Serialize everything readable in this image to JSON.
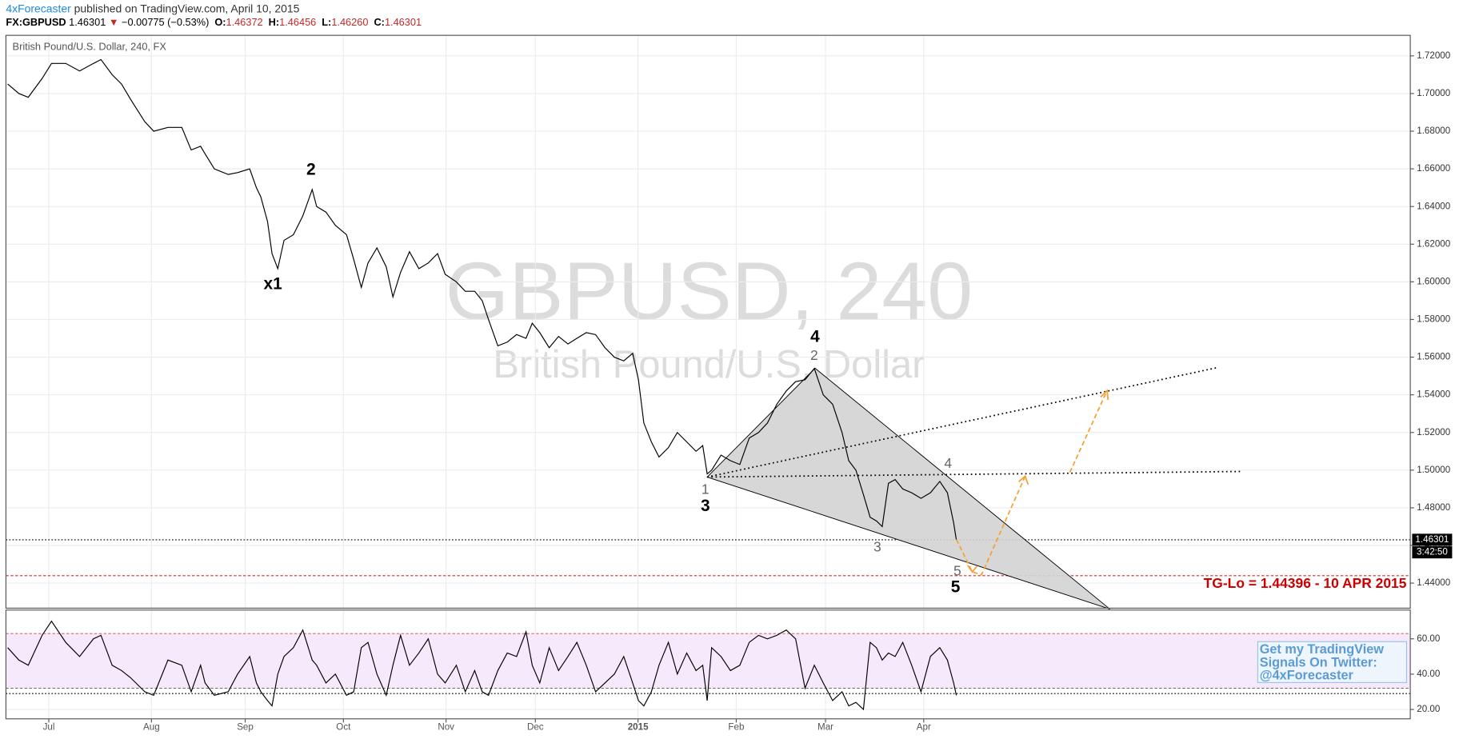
{
  "header": {
    "author": "4xForecaster",
    "published": "published on TradingView.com, April 10, 2015",
    "symbol": "FX:GBPUSD",
    "last": "1.46301",
    "arrow": "▼",
    "change": "−0.00775 (−0.53%)",
    "ohlc": [
      [
        "O:",
        "1.46372"
      ],
      [
        "H:",
        "1.46456"
      ],
      [
        "L:",
        "1.46260"
      ],
      [
        "C:",
        "1.46301"
      ]
    ]
  },
  "chart_data": [
    {
      "type": "line",
      "title": "British Pound/U.S. Dollar, 240, FX",
      "watermark": [
        "GBPUSD, 240",
        "British Pound/U.S. Dollar"
      ],
      "color": "#000000",
      "x": [
        -9.2,
        -6.7,
        -4.6,
        -1.5,
        0.6,
        3.8,
        6.9,
        10.0,
        11.7,
        14.2,
        16.3,
        18.3,
        21.5,
        23.5,
        26.7,
        29.8,
        31.9,
        34.0,
        35.0,
        37.1,
        40.2,
        42.3,
        45.0,
        46.5,
        47.5,
        49.0,
        50.0,
        51.3,
        52.7,
        54.8,
        56.9,
        59.0,
        60.0,
        62.1,
        64.2,
        66.7,
        68.3,
        70.0,
        71.5,
        73.5,
        75.6,
        77.1,
        78.8,
        80.8,
        82.9,
        85.0,
        87.1,
        88.8,
        91.3,
        93.3,
        95.4,
        97.1,
        98.5,
        100.6,
        102.7,
        104.8,
        106.9,
        108.3,
        110.0,
        112.1,
        114.2,
        116.3,
        118.3,
        120.4,
        122.5,
        124.6,
        126.7,
        128.8,
        130.8,
        132.1,
        133.3,
        135.0,
        136.7,
        138.8,
        140.8,
        142.9,
        145.0,
        146.5,
        147.5,
        148.5,
        150.6,
        152.7,
        154.8,
        156.9,
        159.0,
        161.0,
        163.1,
        165.2,
        167.3,
        169.4,
        171.5,
        173.5,
        175.6,
        177.7,
        179.2,
        180.8,
        182.5,
        184.0,
        185.4,
        186.7,
        188.1,
        189.6,
        191.3,
        193.3,
        195.4,
        197.5,
        199.6,
        201.3,
        202.7,
        203.3
      ],
      "values": [
        1.705,
        1.7,
        1.698,
        1.708,
        1.716,
        1.716,
        1.712,
        1.716,
        1.718,
        1.71,
        1.705,
        1.697,
        1.685,
        1.68,
        1.682,
        1.682,
        1.67,
        1.672,
        1.668,
        1.66,
        1.657,
        1.658,
        1.66,
        1.65,
        1.645,
        1.632,
        1.615,
        1.607,
        1.622,
        1.625,
        1.635,
        1.649,
        1.64,
        1.637,
        1.63,
        1.625,
        1.612,
        1.597,
        1.61,
        1.618,
        1.608,
        1.592,
        1.605,
        1.616,
        1.607,
        1.61,
        1.615,
        1.604,
        1.6,
        1.595,
        1.595,
        1.59,
        1.58,
        1.566,
        1.568,
        1.572,
        1.57,
        1.578,
        1.573,
        1.565,
        1.571,
        1.567,
        1.57,
        1.573,
        1.572,
        1.565,
        1.56,
        1.558,
        1.562,
        1.548,
        1.525,
        1.515,
        1.507,
        1.512,
        1.52,
        1.515,
        1.51,
        1.513,
        1.498,
        1.5,
        1.508,
        1.505,
        1.503,
        1.517,
        1.52,
        1.525,
        1.535,
        1.542,
        1.547,
        1.548,
        1.554,
        1.54,
        1.535,
        1.52,
        1.505,
        1.5,
        1.487,
        1.475,
        1.473,
        1.47,
        1.493,
        1.495,
        1.49,
        1.488,
        1.485,
        1.488,
        1.494,
        1.488,
        1.472,
        1.463
      ],
      "xlim": [
        -9.6,
        305
      ],
      "xticks": [
        {
          "value": 0,
          "label": "Jul"
        },
        {
          "value": 23,
          "label": "Aug"
        },
        {
          "value": 44,
          "label": "Sep"
        },
        {
          "value": 66,
          "label": "Oct"
        },
        {
          "value": 89,
          "label": "Nov"
        },
        {
          "value": 109,
          "label": "Dec"
        },
        {
          "value": 132,
          "label": "2015"
        },
        {
          "value": 154,
          "label": "Feb"
        },
        {
          "value": 174,
          "label": "Mar"
        },
        {
          "value": 196,
          "label": "Apr"
        }
      ],
      "ylim": [
        1.4267,
        1.7309
      ],
      "yticks": [
        {
          "value": 1.44,
          "label": "1.44000"
        },
        {
          "value": 1.46,
          "label": "1.46000"
        },
        {
          "value": 1.48,
          "label": "1.48000"
        },
        {
          "value": 1.5,
          "label": "1.50000"
        },
        {
          "value": 1.52,
          "label": "1.52000"
        },
        {
          "value": 1.54,
          "label": "1.54000"
        },
        {
          "value": 1.56,
          "label": "1.56000"
        },
        {
          "value": 1.58,
          "label": "1.58000"
        },
        {
          "value": 1.6,
          "label": "1.60000"
        },
        {
          "value": 1.62,
          "label": "1.62000"
        },
        {
          "value": 1.64,
          "label": "1.64000"
        },
        {
          "value": 1.66,
          "label": "1.66000"
        },
        {
          "value": 1.68,
          "label": "1.68000"
        },
        {
          "value": 1.7,
          "label": "1.70000"
        },
        {
          "value": 1.72,
          "label": "1.72000"
        }
      ],
      "last_price": {
        "value": 1.46301,
        "label": "1.46301"
      },
      "countdown": "3:42:50",
      "target": {
        "value": 1.44396,
        "label": "TG-Lo = 1.44396 - 10 APR 2015"
      },
      "annotations": [
        "2",
        "x1",
        "4",
        "3",
        "5",
        "1",
        "2",
        "3",
        "4",
        "5"
      ],
      "note": [
        "Get my TradingView",
        "Signals On Twitter:",
        "@4xForecaster"
      ],
      "grid": true
    },
    {
      "type": "line",
      "color": "#000000",
      "values": [
        55,
        48,
        45,
        62,
        70,
        58,
        50,
        60,
        62,
        45,
        42,
        38,
        30,
        28,
        48,
        45,
        30,
        45,
        35,
        28,
        30,
        40,
        50,
        35,
        30,
        25,
        22,
        40,
        50,
        55,
        65,
        48,
        45,
        35,
        40,
        28,
        30,
        55,
        58,
        40,
        28,
        45,
        62,
        45,
        52,
        60,
        40,
        35,
        45,
        30,
        42,
        30,
        28,
        42,
        52,
        50,
        64,
        45,
        35,
        55,
        42,
        50,
        58,
        45,
        30,
        35,
        40,
        50,
        35,
        25,
        22,
        30,
        45,
        58,
        40,
        52,
        42,
        45,
        25,
        55,
        50,
        42,
        45,
        58,
        62,
        60,
        62,
        65,
        60,
        32,
        45,
        35,
        25,
        30,
        22,
        24,
        20,
        58,
        55,
        48,
        52,
        50,
        58,
        45,
        30,
        50,
        55,
        48,
        35,
        28
      ],
      "ylim": [
        14.7,
        76.3
      ],
      "yticks": [
        {
          "value": 20,
          "label": "20.00"
        },
        {
          "value": 40,
          "label": "40.00"
        },
        {
          "value": 60,
          "label": "60.00"
        }
      ],
      "band": [
        32,
        63
      ],
      "levels": [
        29
      ]
    }
  ]
}
